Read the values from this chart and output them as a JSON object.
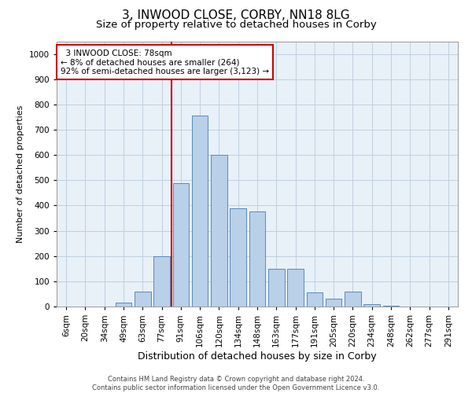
{
  "title": "3, INWOOD CLOSE, CORBY, NN18 8LG",
  "subtitle": "Size of property relative to detached houses in Corby",
  "xlabel": "Distribution of detached houses by size in Corby",
  "ylabel": "Number of detached properties",
  "footer_line1": "Contains HM Land Registry data © Crown copyright and database right 2024.",
  "footer_line2": "Contains public sector information licensed under the Open Government Licence v3.0.",
  "bar_color": "#b8d0e8",
  "bar_edge_color": "#5a8ab8",
  "categories": [
    "6sqm",
    "20sqm",
    "34sqm",
    "49sqm",
    "63sqm",
    "77sqm",
    "91sqm",
    "106sqm",
    "120sqm",
    "134sqm",
    "148sqm",
    "163sqm",
    "177sqm",
    "191sqm",
    "205sqm",
    "220sqm",
    "234sqm",
    "248sqm",
    "262sqm",
    "277sqm",
    "291sqm"
  ],
  "values": [
    0,
    0,
    0,
    15,
    60,
    200,
    490,
    755,
    600,
    390,
    378,
    150,
    150,
    55,
    30,
    58,
    10,
    2,
    1,
    0,
    0
  ],
  "red_line_index": 5,
  "annotation_line1": "  3 INWOOD CLOSE: 78sqm",
  "annotation_line2": "← 8% of detached houses are smaller (264)",
  "annotation_line3": "92% of semi-detached houses are larger (3,123) →",
  "annotation_box_color": "#ffffff",
  "annotation_box_edge": "#cc0000",
  "red_line_color": "#cc0000",
  "ylim": [
    0,
    1050
  ],
  "yticks": [
    0,
    100,
    200,
    300,
    400,
    500,
    600,
    700,
    800,
    900,
    1000
  ],
  "grid_color": "#c0d0e0",
  "background_color": "#e8f0f8",
  "title_fontsize": 11,
  "subtitle_fontsize": 9.5,
  "xlabel_fontsize": 9,
  "ylabel_fontsize": 8,
  "tick_fontsize": 7.5,
  "annotation_fontsize": 7.5
}
